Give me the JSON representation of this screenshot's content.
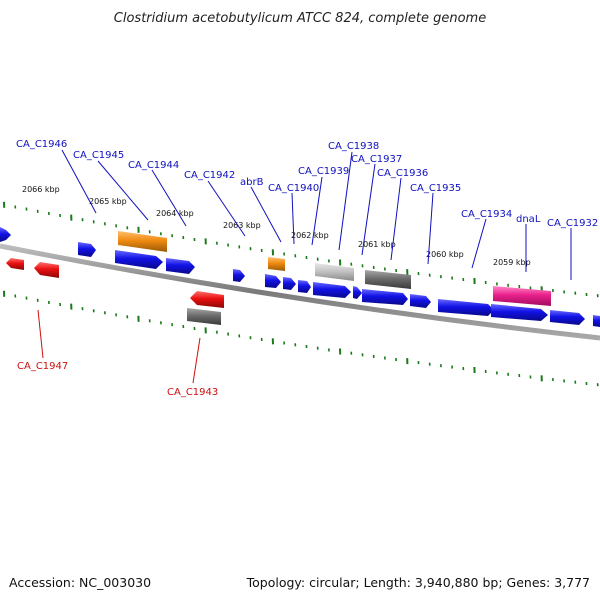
{
  "title": "Clostridium acetobutylicum ATCC 824, complete genome",
  "footer": {
    "accession": "Accession: NC_003030",
    "topology": "Topology: circular; Length: 3,940,880 bp; Genes: 3,777"
  },
  "colors": {
    "background": "#ffffff",
    "backbone": "#888888",
    "tick": "#1a7a1a",
    "gene_blue": "#1010e0",
    "gene_red": "#e01010",
    "gene_orange": "#f08a10",
    "gene_gray": "#707070",
    "gene_lightgray": "#c0c0c0",
    "gene_pink": "#e8208a",
    "label_blue": "#1010c0",
    "label_red": "#cc1010",
    "leader": "#1010c0",
    "leader_red": "#cc1010"
  },
  "scale_labels": [
    "2066 kbp",
    "2065 kbp",
    "2064 kbp",
    "2063 kbp",
    "2062 kbp",
    "2061 kbp",
    "2060 kbp",
    "2059 kbp"
  ],
  "gene_labels": {
    "top": [
      "CA_C1946",
      "CA_C1945",
      "CA_C1944",
      "CA_C1942",
      "abrB",
      "CA_C1940",
      "CA_C1939",
      "CA_C1938",
      "CA_C1937",
      "CA_C1936",
      "CA_C1935",
      "CA_C1934",
      "dnaL",
      "CA_C1932"
    ],
    "bottom": [
      "CA_C1947",
      "CA_C1943"
    ]
  }
}
